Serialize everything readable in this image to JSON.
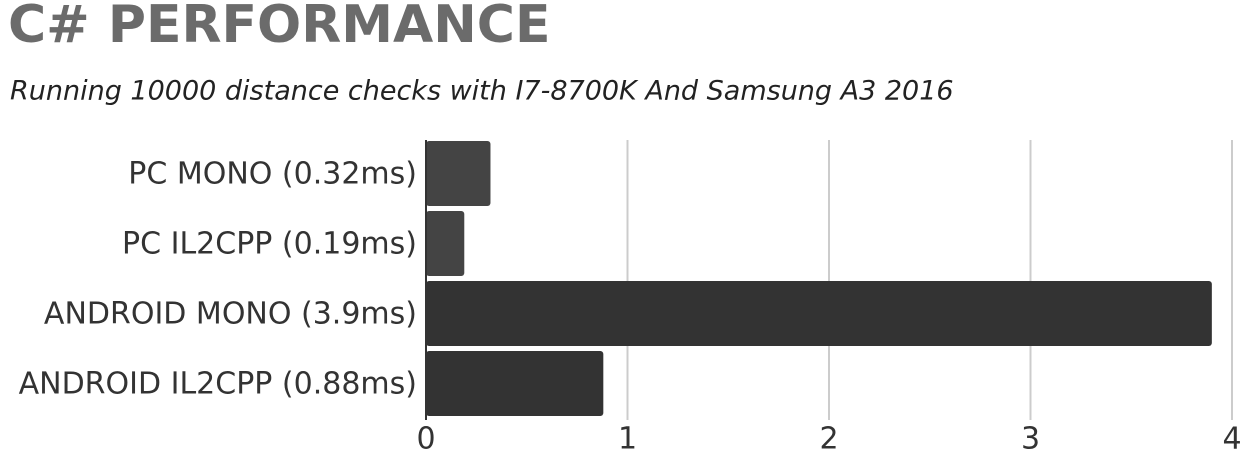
{
  "chart_data": {
    "type": "bar",
    "orientation": "horizontal",
    "title": "C# PERFORMANCE",
    "subtitle": "Running 10000 distance checks with I7-8700K And Samsung A3 2016",
    "categories": [
      "PC MONO (0.32ms)",
      "PC IL2CPP (0.19ms)",
      "ANDROID MONO (3.9ms)",
      "ANDROID IL2CPP (0.88ms)"
    ],
    "values": [
      0.32,
      0.19,
      3.9,
      0.88
    ],
    "colors": [
      "#444444",
      "#444444",
      "#333333",
      "#333333"
    ],
    "xlim": [
      0,
      4
    ],
    "xticks": [
      0,
      1,
      2,
      3,
      4
    ],
    "grid": true
  }
}
